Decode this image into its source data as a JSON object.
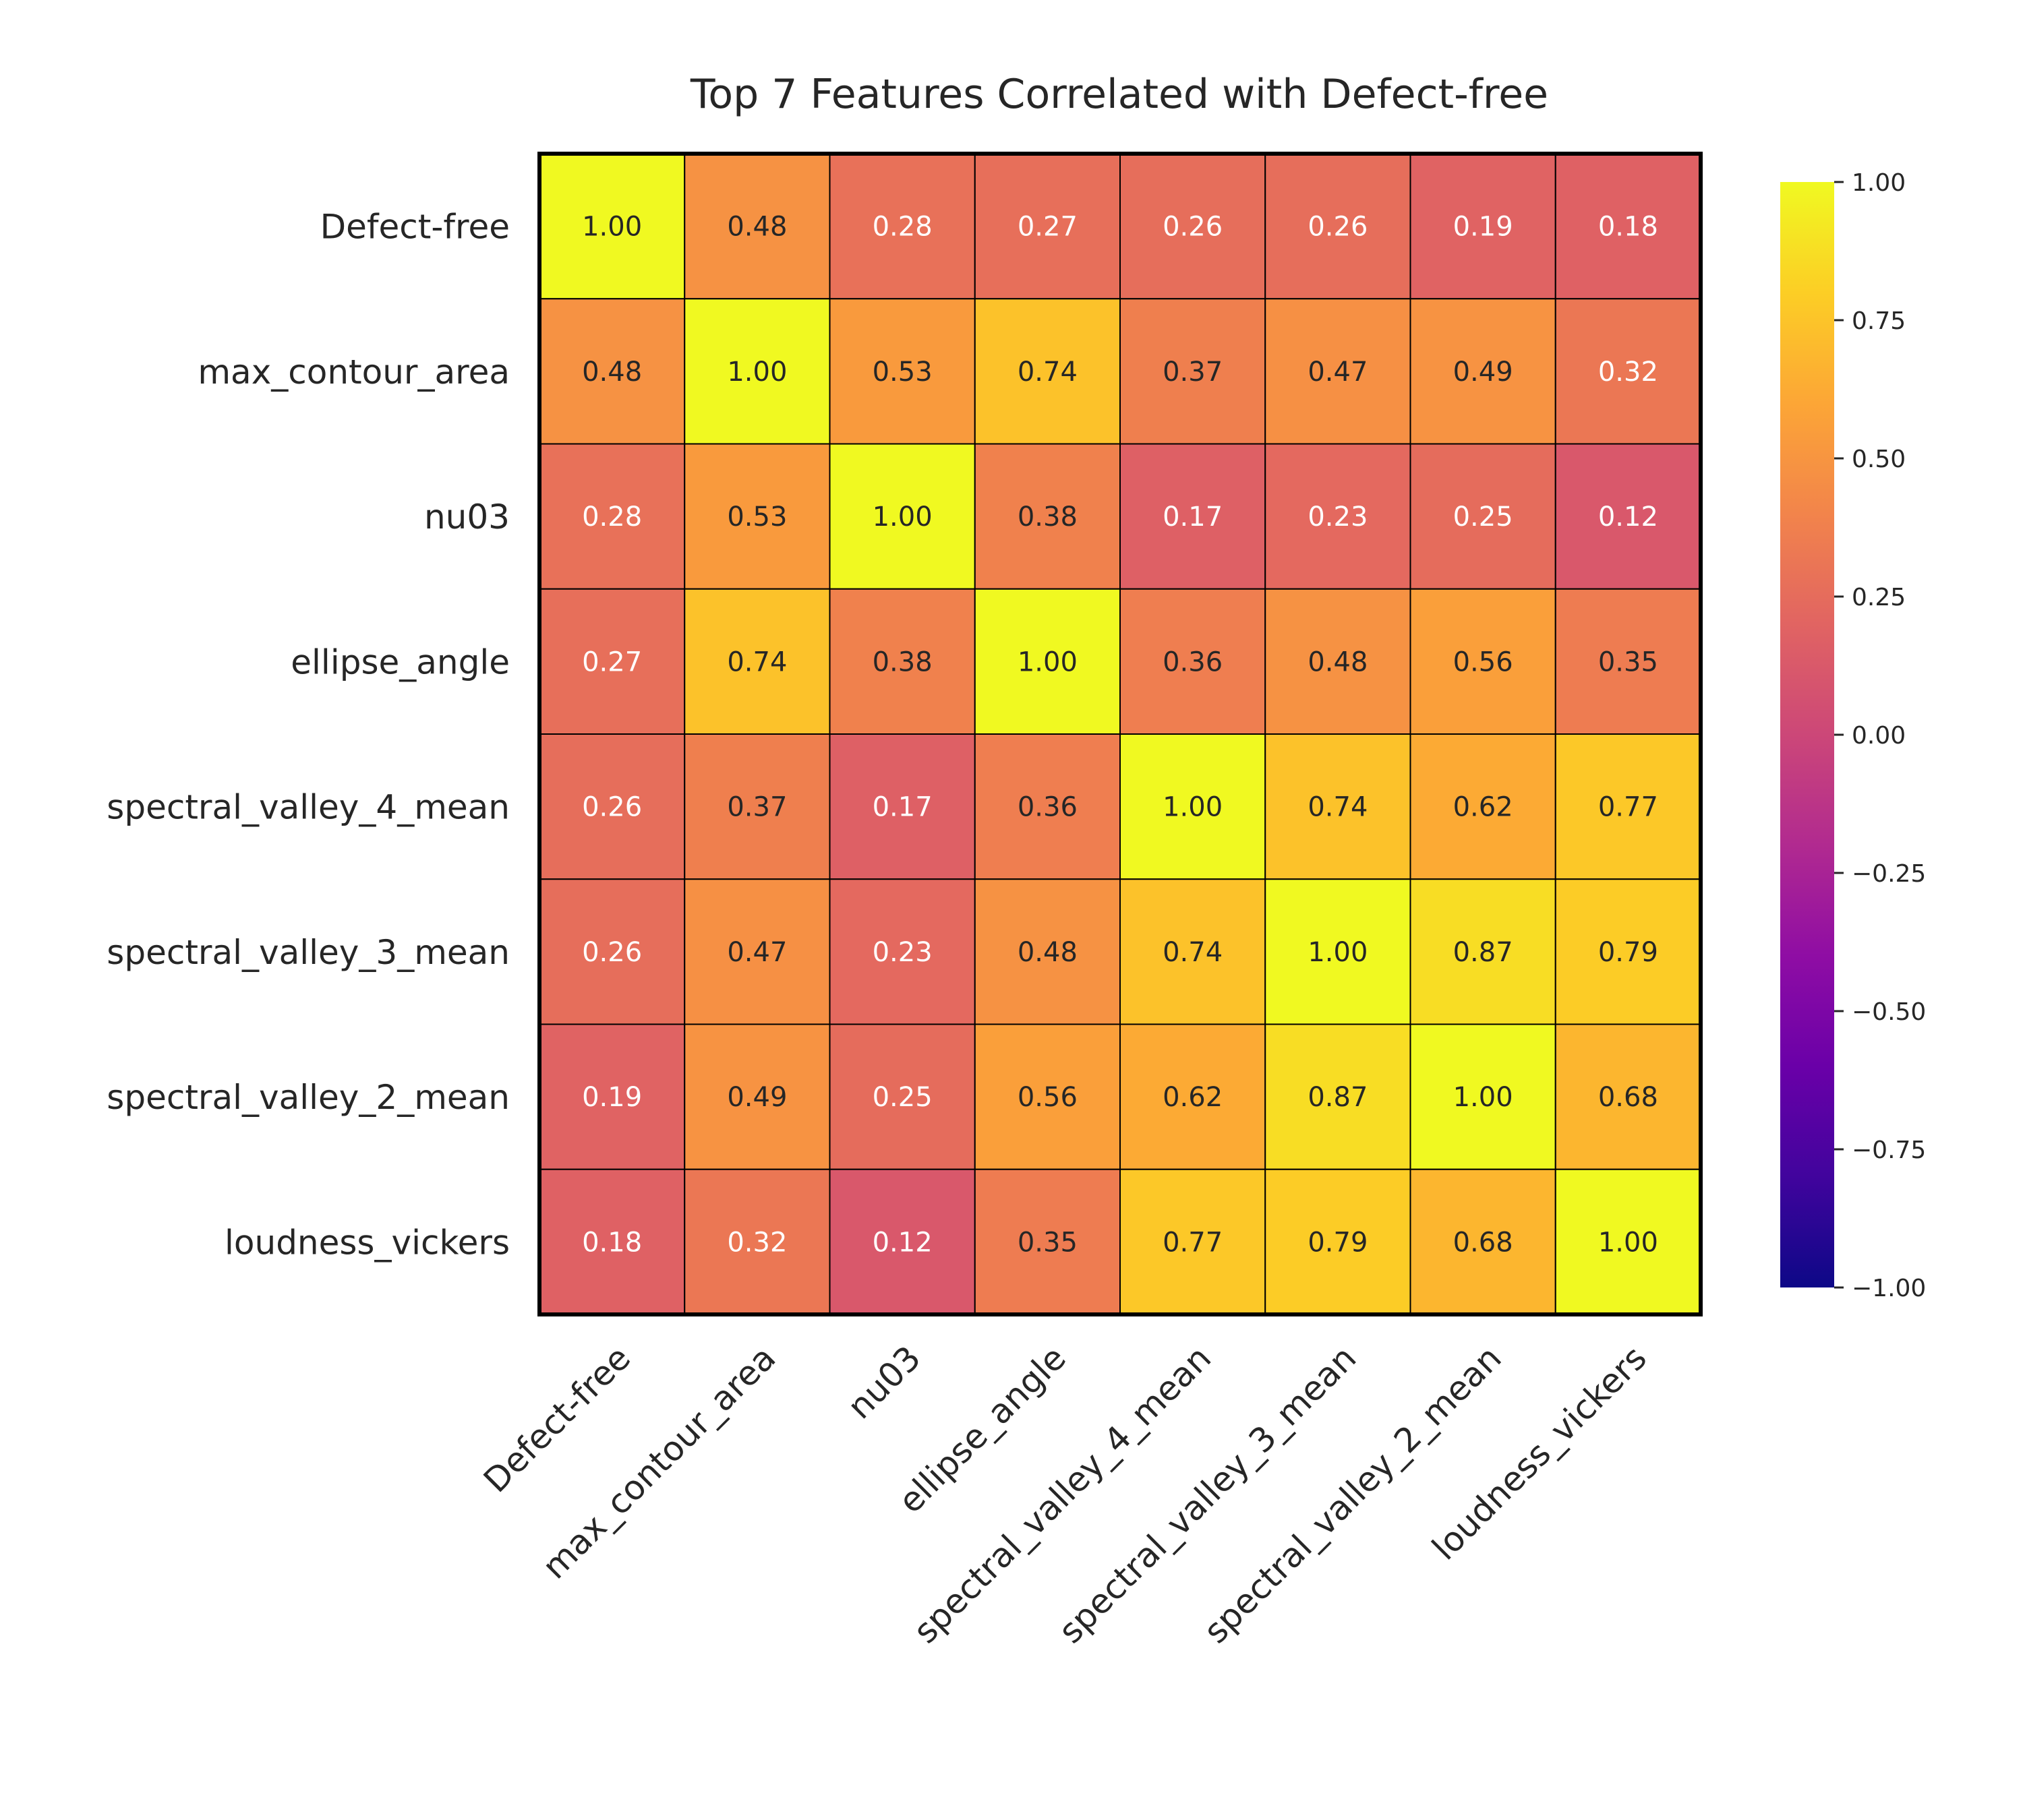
{
  "chart_data": {
    "type": "heatmap",
    "title": "Top 7 Features Correlated with Defect-free",
    "xlabel": "",
    "ylabel": "",
    "labels": [
      "Defect-free",
      "max_contour_area",
      "nu03",
      "ellipse_angle",
      "spectral_valley_4_mean",
      "spectral_valley_3_mean",
      "spectral_valley_2_mean",
      "loudness_vickers"
    ],
    "matrix": [
      [
        1.0,
        0.48,
        0.28,
        0.27,
        0.26,
        0.26,
        0.19,
        0.18
      ],
      [
        0.48,
        1.0,
        0.53,
        0.74,
        0.37,
        0.47,
        0.49,
        0.32
      ],
      [
        0.28,
        0.53,
        1.0,
        0.38,
        0.17,
        0.23,
        0.25,
        0.12
      ],
      [
        0.27,
        0.74,
        0.38,
        1.0,
        0.36,
        0.48,
        0.56,
        0.35
      ],
      [
        0.26,
        0.37,
        0.17,
        0.36,
        1.0,
        0.74,
        0.62,
        0.77
      ],
      [
        0.26,
        0.47,
        0.23,
        0.48,
        0.74,
        1.0,
        0.87,
        0.79
      ],
      [
        0.19,
        0.49,
        0.25,
        0.56,
        0.62,
        0.87,
        1.0,
        0.68
      ],
      [
        0.18,
        0.32,
        0.12,
        0.35,
        0.77,
        0.79,
        0.68,
        1.0
      ]
    ],
    "value_format": "0.00",
    "colormap": "plasma",
    "vmin": -1.0,
    "vmax": 1.0,
    "colorbar_ticks": [
      "1.00",
      "0.75",
      "0.50",
      "0.25",
      "0.00",
      "−0.25",
      "−0.50",
      "−0.75",
      "−1.00"
    ],
    "colorbar_tick_values": [
      1.0,
      0.75,
      0.5,
      0.25,
      0.0,
      -0.25,
      -0.5,
      -0.75,
      -1.0
    ],
    "colorbar_placement": "right"
  }
}
